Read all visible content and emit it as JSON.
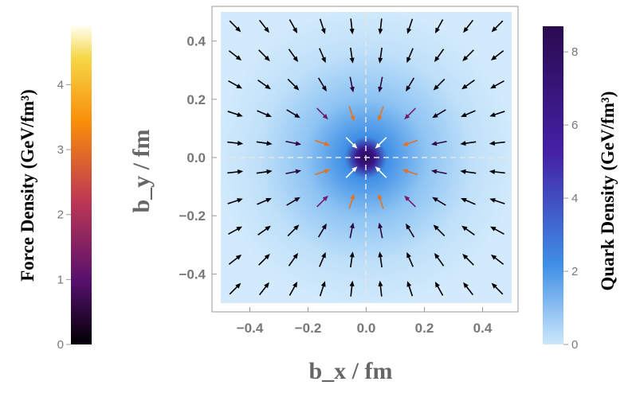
{
  "chart_data": {
    "type": "vector-field-density",
    "xlabel": "b_x / fm",
    "ylabel": "b_y / fm",
    "x_ticks": [
      "−0.4",
      "−0.2",
      "0.0",
      "0.2",
      "0.4"
    ],
    "y_ticks": [
      "0.4",
      "0.2",
      "0.0",
      "−0.2",
      "−0.4"
    ],
    "xlim": [
      -0.5,
      0.5
    ],
    "ylim": [
      -0.5,
      0.5
    ],
    "density_colorbar": {
      "title": "Quark Density (GeV/fm³)",
      "ticks": [
        "8",
        "6",
        "4",
        "2",
        "0"
      ],
      "range": [
        0,
        8.7
      ],
      "colors": [
        "#cde7fb",
        "#3f8fe6",
        "#4421a6",
        "#2a0a4f"
      ]
    },
    "force_colorbar": {
      "title": "Force Density (GeV/fm³)",
      "ticks": [
        "4",
        "3",
        "2",
        "1",
        "0"
      ],
      "range": [
        0,
        4.9
      ],
      "colors": [
        "#000004",
        "#57106e",
        "#bc3754",
        "#f98e09",
        "#fcffa4"
      ]
    },
    "vector_field": {
      "direction": "inward toward origin",
      "grid_x": [
        -0.45,
        -0.35,
        -0.25,
        -0.15,
        -0.05,
        0.05,
        0.15,
        0.25,
        0.35,
        0.45
      ],
      "grid_y": [
        -0.45,
        -0.35,
        -0.25,
        -0.15,
        -0.05,
        0.05,
        0.15,
        0.25,
        0.35,
        0.45
      ]
    },
    "guide_lines": "dashed lines at x = 0 and y = 0",
    "grid": false
  }
}
